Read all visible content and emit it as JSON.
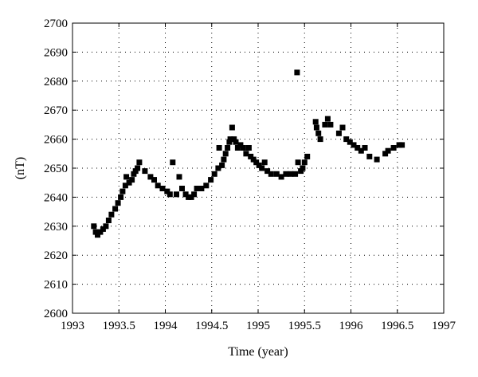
{
  "chart_data": {
    "type": "scatter",
    "xlabel": "Time (year)",
    "ylabel": "(nT)",
    "xlim": [
      1993,
      1997
    ],
    "ylim": [
      2600,
      2700
    ],
    "grid": true,
    "x_ticks": [
      1993,
      1993.5,
      1994,
      1994.5,
      1995,
      1995.5,
      1996,
      1996.5,
      1997
    ],
    "x_tick_labels": [
      "1993",
      "1993.5",
      "1994",
      "1994.5",
      "1995",
      "1995.5",
      "1996",
      "1996.5",
      "1997"
    ],
    "y_ticks": [
      2600,
      2610,
      2620,
      2630,
      2640,
      2650,
      2660,
      2670,
      2680,
      2690,
      2700
    ],
    "y_tick_labels": [
      "2600",
      "2610",
      "2620",
      "2630",
      "2640",
      "2650",
      "2660",
      "2670",
      "2680",
      "2690",
      "2700"
    ],
    "marker": "square",
    "color": "#000000",
    "points": [
      [
        1993.23,
        2630
      ],
      [
        1993.25,
        2628
      ],
      [
        1993.27,
        2627
      ],
      [
        1993.3,
        2628
      ],
      [
        1993.33,
        2629
      ],
      [
        1993.36,
        2630
      ],
      [
        1993.39,
        2632
      ],
      [
        1993.42,
        2634
      ],
      [
        1993.46,
        2636
      ],
      [
        1993.49,
        2638
      ],
      [
        1993.52,
        2640
      ],
      [
        1993.54,
        2642
      ],
      [
        1993.57,
        2644
      ],
      [
        1993.58,
        2647
      ],
      [
        1993.61,
        2645
      ],
      [
        1993.64,
        2646
      ],
      [
        1993.66,
        2648
      ],
      [
        1993.68,
        2649
      ],
      [
        1993.7,
        2650
      ],
      [
        1993.72,
        2652
      ],
      [
        1993.78,
        2649
      ],
      [
        1993.84,
        2647
      ],
      [
        1993.88,
        2646
      ],
      [
        1993.92,
        2644
      ],
      [
        1993.97,
        2643
      ],
      [
        1994.02,
        2642
      ],
      [
        1994.05,
        2641
      ],
      [
        1994.08,
        2652
      ],
      [
        1994.12,
        2641
      ],
      [
        1994.15,
        2647
      ],
      [
        1994.18,
        2643
      ],
      [
        1994.22,
        2641
      ],
      [
        1994.25,
        2640
      ],
      [
        1994.28,
        2640
      ],
      [
        1994.31,
        2641
      ],
      [
        1994.34,
        2643
      ],
      [
        1994.39,
        2643
      ],
      [
        1994.44,
        2644
      ],
      [
        1994.49,
        2646
      ],
      [
        1994.53,
        2648
      ],
      [
        1994.57,
        2650
      ],
      [
        1994.58,
        2657
      ],
      [
        1994.61,
        2651
      ],
      [
        1994.63,
        2653
      ],
      [
        1994.65,
        2655
      ],
      [
        1994.67,
        2657
      ],
      [
        1994.69,
        2659
      ],
      [
        1994.7,
        2660
      ],
      [
        1994.72,
        2664
      ],
      [
        1994.74,
        2660
      ],
      [
        1994.76,
        2659
      ],
      [
        1994.78,
        2657
      ],
      [
        1994.81,
        2658
      ],
      [
        1994.84,
        2657
      ],
      [
        1994.87,
        2655
      ],
      [
        1994.9,
        2657
      ],
      [
        1994.92,
        2654
      ],
      [
        1994.95,
        2653
      ],
      [
        1994.98,
        2652
      ],
      [
        1995.01,
        2651
      ],
      [
        1995.04,
        2650
      ],
      [
        1995.07,
        2652
      ],
      [
        1995.1,
        2649
      ],
      [
        1995.14,
        2648
      ],
      [
        1995.2,
        2648
      ],
      [
        1995.25,
        2647
      ],
      [
        1995.3,
        2648
      ],
      [
        1995.35,
        2648
      ],
      [
        1995.4,
        2648
      ],
      [
        1995.42,
        2683
      ],
      [
        1995.43,
        2652
      ],
      [
        1995.46,
        2649
      ],
      [
        1995.48,
        2650
      ],
      [
        1995.5,
        2652
      ],
      [
        1995.53,
        2654
      ],
      [
        1995.62,
        2666
      ],
      [
        1995.63,
        2664
      ],
      [
        1995.65,
        2662
      ],
      [
        1995.67,
        2660
      ],
      [
        1995.72,
        2665
      ],
      [
        1995.75,
        2667
      ],
      [
        1995.78,
        2665
      ],
      [
        1995.87,
        2662
      ],
      [
        1995.91,
        2664
      ],
      [
        1995.95,
        2660
      ],
      [
        1995.99,
        2659
      ],
      [
        1996.03,
        2658
      ],
      [
        1996.07,
        2657
      ],
      [
        1996.11,
        2656
      ],
      [
        1996.15,
        2657
      ],
      [
        1996.2,
        2654
      ],
      [
        1996.28,
        2653
      ],
      [
        1996.37,
        2655
      ],
      [
        1996.4,
        2656
      ],
      [
        1996.46,
        2657
      ],
      [
        1996.52,
        2658
      ],
      [
        1996.55,
        2658
      ]
    ]
  }
}
